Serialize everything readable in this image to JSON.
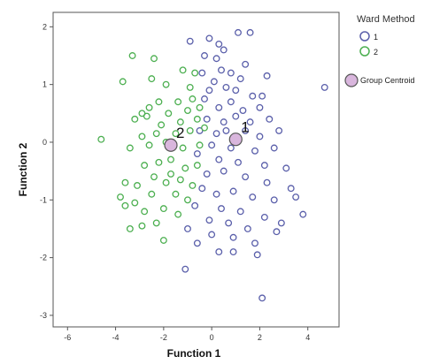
{
  "chart_data": {
    "type": "scatter",
    "title": "",
    "xlabel": "Function 1",
    "ylabel": "Function 2",
    "xlim": [
      -6.6,
      5.3
    ],
    "ylim": [
      -3.2,
      2.25
    ],
    "xticks": [
      -6,
      -4,
      -2,
      0,
      2,
      4
    ],
    "yticks": [
      -3,
      -2,
      -1,
      0,
      1,
      2
    ],
    "grid": false,
    "legend": {
      "title": "Ward Method",
      "placement": "right",
      "entries": [
        {
          "label": "1",
          "color": "#5a5faa"
        },
        {
          "label": "2",
          "color": "#4caf50"
        }
      ],
      "centroid_label": "Group Centroid"
    },
    "series": [
      {
        "name": "1",
        "color": "#5a5faa",
        "points": [
          [
            -0.9,
            1.75
          ],
          [
            -0.1,
            1.8
          ],
          [
            0.3,
            1.7
          ],
          [
            1.1,
            1.9
          ],
          [
            1.6,
            1.9
          ],
          [
            0.5,
            1.6
          ],
          [
            -0.3,
            1.5
          ],
          [
            0.2,
            1.45
          ],
          [
            1.4,
            1.35
          ],
          [
            -0.4,
            1.2
          ],
          [
            0.1,
            1.05
          ],
          [
            0.4,
            1.25
          ],
          [
            0.8,
            1.2
          ],
          [
            1.2,
            1.1
          ],
          [
            2.3,
            1.15
          ],
          [
            -0.1,
            0.9
          ],
          [
            0.6,
            0.95
          ],
          [
            1.0,
            0.9
          ],
          [
            1.7,
            0.8
          ],
          [
            2.1,
            0.8
          ],
          [
            4.7,
            0.95
          ],
          [
            -0.3,
            0.75
          ],
          [
            0.3,
            0.6
          ],
          [
            0.8,
            0.7
          ],
          [
            1.3,
            0.55
          ],
          [
            2.0,
            0.6
          ],
          [
            -0.2,
            0.4
          ],
          [
            0.5,
            0.35
          ],
          [
            1.0,
            0.45
          ],
          [
            1.6,
            0.35
          ],
          [
            2.4,
            0.4
          ],
          [
            -0.5,
            0.2
          ],
          [
            0.2,
            0.15
          ],
          [
            0.6,
            0.2
          ],
          [
            1.4,
            0.2
          ],
          [
            2.0,
            0.1
          ],
          [
            2.8,
            0.2
          ],
          [
            0.0,
            -0.05
          ],
          [
            0.8,
            -0.1
          ],
          [
            1.8,
            -0.15
          ],
          [
            2.6,
            -0.1
          ],
          [
            -0.6,
            -0.2
          ],
          [
            0.3,
            -0.3
          ],
          [
            1.1,
            -0.35
          ],
          [
            2.2,
            -0.4
          ],
          [
            3.1,
            -0.45
          ],
          [
            -0.2,
            -0.55
          ],
          [
            0.5,
            -0.5
          ],
          [
            1.4,
            -0.6
          ],
          [
            2.3,
            -0.7
          ],
          [
            3.3,
            -0.8
          ],
          [
            -0.4,
            -0.8
          ],
          [
            0.2,
            -0.9
          ],
          [
            0.9,
            -0.85
          ],
          [
            1.7,
            -0.95
          ],
          [
            2.6,
            -1.0
          ],
          [
            3.5,
            -0.95
          ],
          [
            -0.7,
            -1.1
          ],
          [
            0.4,
            -1.15
          ],
          [
            1.2,
            -1.2
          ],
          [
            2.2,
            -1.3
          ],
          [
            2.9,
            -1.4
          ],
          [
            3.8,
            -1.25
          ],
          [
            -0.1,
            -1.35
          ],
          [
            0.7,
            -1.4
          ],
          [
            1.5,
            -1.5
          ],
          [
            -1.0,
            -1.5
          ],
          [
            0.0,
            -1.6
          ],
          [
            0.9,
            -1.65
          ],
          [
            1.8,
            -1.75
          ],
          [
            2.7,
            -1.55
          ],
          [
            0.3,
            -1.9
          ],
          [
            -0.6,
            -1.75
          ],
          [
            0.9,
            -1.9
          ],
          [
            1.9,
            -1.95
          ],
          [
            -1.1,
            -2.2
          ],
          [
            2.1,
            -2.7
          ]
        ],
        "centroid": [
          1.0,
          0.05
        ]
      },
      {
        "name": "2",
        "color": "#4caf50",
        "points": [
          [
            -3.3,
            1.5
          ],
          [
            -2.4,
            1.45
          ],
          [
            -1.2,
            1.25
          ],
          [
            -0.7,
            1.2
          ],
          [
            -3.7,
            1.05
          ],
          [
            -2.5,
            1.1
          ],
          [
            -1.9,
            1.0
          ],
          [
            -0.9,
            0.95
          ],
          [
            -2.2,
            0.7
          ],
          [
            -1.4,
            0.7
          ],
          [
            -0.8,
            0.75
          ],
          [
            -2.9,
            0.5
          ],
          [
            -2.6,
            0.6
          ],
          [
            -1.8,
            0.5
          ],
          [
            -1.0,
            0.55
          ],
          [
            -0.5,
            0.6
          ],
          [
            -3.2,
            0.4
          ],
          [
            -2.7,
            0.45
          ],
          [
            -2.1,
            0.3
          ],
          [
            -1.3,
            0.35
          ],
          [
            -0.6,
            0.4
          ],
          [
            -4.6,
            0.05
          ],
          [
            -2.9,
            0.1
          ],
          [
            -2.3,
            0.15
          ],
          [
            -1.5,
            0.15
          ],
          [
            -0.9,
            0.2
          ],
          [
            -0.3,
            0.25
          ],
          [
            -3.4,
            -0.1
          ],
          [
            -2.6,
            -0.05
          ],
          [
            -1.9,
            0.0
          ],
          [
            -1.2,
            -0.1
          ],
          [
            -0.5,
            -0.05
          ],
          [
            -2.8,
            -0.4
          ],
          [
            -2.2,
            -0.35
          ],
          [
            -1.7,
            -0.3
          ],
          [
            -1.1,
            -0.45
          ],
          [
            -0.6,
            -0.4
          ],
          [
            -3.6,
            -0.7
          ],
          [
            -3.1,
            -0.75
          ],
          [
            -2.4,
            -0.6
          ],
          [
            -1.9,
            -0.7
          ],
          [
            -1.3,
            -0.65
          ],
          [
            -0.8,
            -0.75
          ],
          [
            -3.8,
            -0.95
          ],
          [
            -3.2,
            -1.05
          ],
          [
            -2.5,
            -0.9
          ],
          [
            -1.5,
            -0.9
          ],
          [
            -1.0,
            -1.0
          ],
          [
            -3.6,
            -1.1
          ],
          [
            -2.8,
            -1.2
          ],
          [
            -2.0,
            -1.15
          ],
          [
            -1.4,
            -1.25
          ],
          [
            -3.4,
            -1.5
          ],
          [
            -2.3,
            -1.4
          ],
          [
            -2.0,
            -1.7
          ],
          [
            -1.7,
            -0.55
          ],
          [
            -2.9,
            -1.45
          ]
        ],
        "centroid": [
          -1.7,
          -0.05
        ]
      }
    ],
    "centroid_labels": [
      "1",
      "2"
    ]
  }
}
